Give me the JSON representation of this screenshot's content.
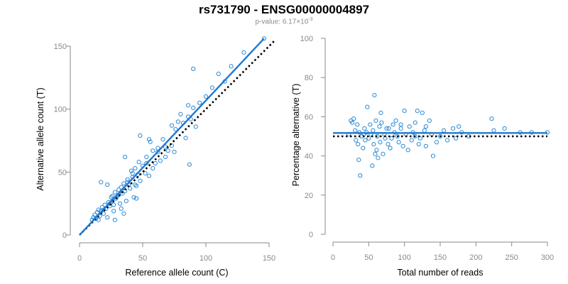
{
  "figure": {
    "title": "rs731790 - ENSG00000004897",
    "subtitle_prefix": "p-value: 6.17×10",
    "subtitle_exponent": "-3"
  },
  "colors": {
    "points": "#2a8ad6",
    "fit_line": "#1f78d1",
    "reference_line": "#000000"
  },
  "chart_data": [
    {
      "type": "scatter",
      "xlabel": "Reference allele count (C)",
      "ylabel": "Alternative allele count (T)",
      "xlim": [
        0,
        150
      ],
      "ylim": [
        0,
        150
      ],
      "xticks": [
        0,
        50,
        100,
        150
      ],
      "yticks": [
        0,
        50,
        100,
        150
      ],
      "fit_line": {
        "x": [
          0,
          146
        ],
        "y": [
          0,
          156
        ]
      },
      "reference_line": {
        "x": [
          0,
          155
        ],
        "y": [
          0,
          155
        ]
      },
      "points": [
        [
          10,
          12
        ],
        [
          11,
          14
        ],
        [
          12,
          16
        ],
        [
          13,
          13
        ],
        [
          14,
          18
        ],
        [
          15,
          20
        ],
        [
          16,
          15
        ],
        [
          17,
          19
        ],
        [
          18,
          22
        ],
        [
          19,
          17
        ],
        [
          20,
          24
        ],
        [
          21,
          21
        ],
        [
          22,
          14
        ],
        [
          23,
          26
        ],
        [
          24,
          23
        ],
        [
          25,
          30
        ],
        [
          26,
          27
        ],
        [
          27,
          19
        ],
        [
          28,
          34
        ],
        [
          29,
          29
        ],
        [
          30,
          31
        ],
        [
          31,
          36
        ],
        [
          32,
          25
        ],
        [
          33,
          38
        ],
        [
          34,
          33
        ],
        [
          35,
          41
        ],
        [
          36,
          35
        ],
        [
          37,
          27
        ],
        [
          38,
          44
        ],
        [
          39,
          40
        ],
        [
          40,
          37
        ],
        [
          41,
          51
        ],
        [
          42,
          46
        ],
        [
          43,
          30
        ],
        [
          44,
          53
        ],
        [
          45,
          39
        ],
        [
          46,
          48
        ],
        [
          47,
          58
        ],
        [
          48,
          43
        ],
        [
          50,
          55
        ],
        [
          52,
          49
        ],
        [
          53,
          62
        ],
        [
          55,
          47
        ],
        [
          56,
          74
        ],
        [
          58,
          53
        ],
        [
          60,
          57
        ],
        [
          62,
          66
        ],
        [
          64,
          59
        ],
        [
          66,
          76
        ],
        [
          68,
          62
        ],
        [
          70,
          67
        ],
        [
          73,
          71
        ],
        [
          76,
          84
        ],
        [
          78,
          90
        ],
        [
          80,
          96
        ],
        [
          84,
          77
        ],
        [
          86,
          103
        ],
        [
          88,
          92
        ],
        [
          90,
          101
        ],
        [
          92,
          86
        ],
        [
          95,
          105
        ],
        [
          100,
          110
        ],
        [
          105,
          117
        ],
        [
          110,
          128
        ],
        [
          115,
          122
        ],
        [
          120,
          134
        ],
        [
          130,
          145
        ],
        [
          146,
          156
        ],
        [
          26,
          31
        ],
        [
          38,
          42
        ],
        [
          44,
          40
        ],
        [
          53,
          57
        ],
        [
          73,
          87
        ],
        [
          87,
          56
        ],
        [
          90,
          132
        ],
        [
          17,
          42
        ],
        [
          22,
          40
        ],
        [
          28,
          12
        ],
        [
          35,
          17
        ],
        [
          45,
          29
        ],
        [
          62,
          69
        ],
        [
          75,
          66
        ],
        [
          15,
          12
        ],
        [
          33,
          21
        ],
        [
          48,
          79
        ],
        [
          55,
          76
        ],
        [
          82,
          89
        ],
        [
          86,
          94
        ],
        [
          58,
          67
        ],
        [
          68,
          70
        ],
        [
          36,
          62
        ],
        [
          42,
          49
        ],
        [
          19,
          20
        ],
        [
          24,
          25
        ],
        [
          31,
          32
        ],
        [
          27,
          24
        ]
      ]
    },
    {
      "type": "scatter",
      "xlabel": "Total number of reads",
      "ylabel": "Percentage alternative (T)",
      "xlim": [
        0,
        300
      ],
      "ylim": [
        0,
        100
      ],
      "xticks": [
        0,
        50,
        100,
        150,
        200,
        250,
        300
      ],
      "yticks": [
        0,
        20,
        40,
        60,
        80,
        100
      ],
      "fit_line": {
        "x": [
          0,
          300
        ],
        "y": [
          51.7,
          51.7
        ]
      },
      "reference_line": {
        "x": [
          0,
          300
        ],
        "y": [
          50,
          50
        ]
      },
      "points": [
        [
          22,
          51
        ],
        [
          25,
          58
        ],
        [
          27,
          57
        ],
        [
          29,
          59
        ],
        [
          31,
          53
        ],
        [
          32,
          48
        ],
        [
          34,
          56
        ],
        [
          35,
          46
        ],
        [
          36,
          38
        ],
        [
          37,
          52
        ],
        [
          38,
          30
        ],
        [
          40,
          50
        ],
        [
          42,
          44
        ],
        [
          43,
          51
        ],
        [
          44,
          54
        ],
        [
          45,
          48
        ],
        [
          47,
          52
        ],
        [
          48,
          65
        ],
        [
          50,
          49
        ],
        [
          52,
          56
        ],
        [
          53,
          51
        ],
        [
          55,
          35
        ],
        [
          56,
          53
        ],
        [
          57,
          46
        ],
        [
          58,
          71
        ],
        [
          59,
          41
        ],
        [
          60,
          58
        ],
        [
          61,
          43
        ],
        [
          62,
          50
        ],
        [
          63,
          39
        ],
        [
          65,
          55
        ],
        [
          66,
          47
        ],
        [
          67,
          62
        ],
        [
          68,
          57
        ],
        [
          70,
          41
        ],
        [
          72,
          51
        ],
        [
          73,
          49
        ],
        [
          75,
          54
        ],
        [
          77,
          46
        ],
        [
          80,
          44
        ],
        [
          82,
          49
        ],
        [
          84,
          56
        ],
        [
          86,
          52
        ],
        [
          88,
          58
        ],
        [
          90,
          50
        ],
        [
          92,
          47
        ],
        [
          95,
          54
        ],
        [
          98,
          45
        ],
        [
          100,
          63
        ],
        [
          102,
          51
        ],
        [
          105,
          43
        ],
        [
          107,
          55
        ],
        [
          110,
          48
        ],
        [
          112,
          52
        ],
        [
          115,
          57
        ],
        [
          118,
          63
        ],
        [
          120,
          46
        ],
        [
          122,
          49
        ],
        [
          125,
          62
        ],
        [
          128,
          53
        ],
        [
          130,
          55
        ],
        [
          135,
          58
        ],
        [
          138,
          51
        ],
        [
          140,
          40
        ],
        [
          145,
          47
        ],
        [
          150,
          50
        ],
        [
          155,
          53
        ],
        [
          160,
          48
        ],
        [
          168,
          54
        ],
        [
          172,
          49
        ],
        [
          176,
          55
        ],
        [
          180,
          52
        ],
        [
          190,
          50
        ],
        [
          222,
          59
        ],
        [
          225,
          53
        ],
        [
          240,
          54
        ],
        [
          262,
          52
        ],
        [
          278,
          52
        ],
        [
          300,
          52
        ],
        [
          95,
          56
        ],
        [
          78,
          54
        ],
        [
          115,
          50
        ],
        [
          130,
          45
        ]
      ]
    }
  ]
}
